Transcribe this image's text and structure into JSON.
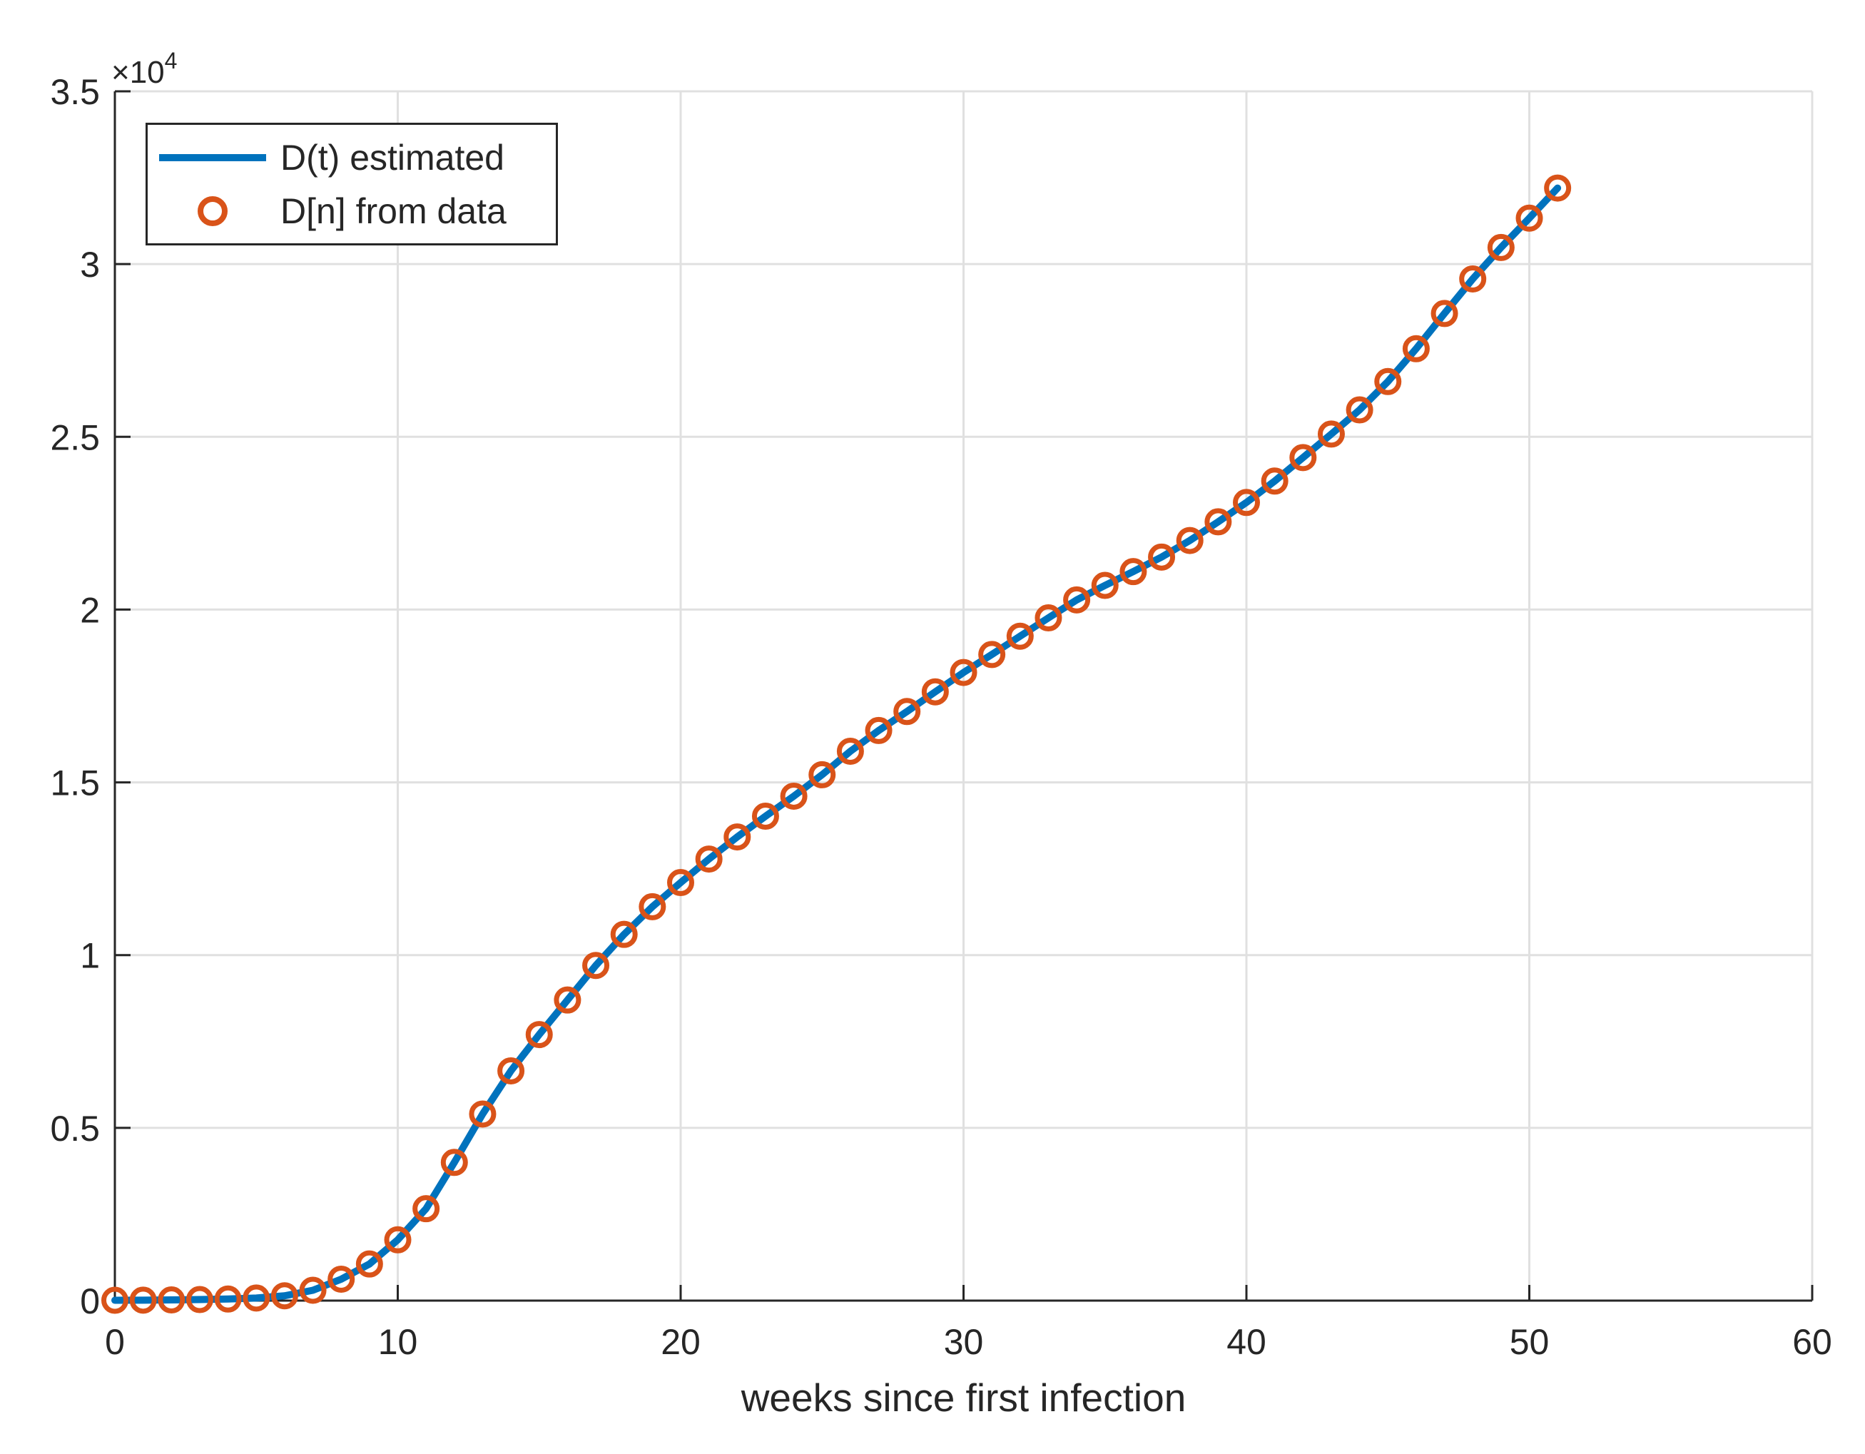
{
  "figure": {
    "xlabel": "weeks since first infection",
    "y_multiplier_base": "×10",
    "y_multiplier_exp": "4",
    "background": "#ffffff",
    "axis_color": "#262626",
    "grid_color": "#e0e0e0"
  },
  "legend": {
    "position": "northwest",
    "items": [
      {
        "label": "D(t) estimated",
        "type": "line",
        "color": "#0072BD"
      },
      {
        "label": "D[n] from data",
        "type": "circle",
        "color": "#D95319"
      }
    ]
  },
  "chart_data": {
    "type": "line",
    "title": "",
    "xlabel": "weeks since first infection",
    "ylabel": "",
    "xlim": [
      0,
      60
    ],
    "ylim": [
      0,
      35000
    ],
    "x_ticks": [
      0,
      10,
      20,
      30,
      40,
      50,
      60
    ],
    "y_ticks": [
      0,
      5000,
      10000,
      15000,
      20000,
      25000,
      30000,
      35000
    ],
    "y_tick_labels": [
      "0",
      "0.5",
      "1",
      "1.5",
      "2",
      "2.5",
      "3",
      "3.5"
    ],
    "y_multiplier_base": "×10",
    "y_multiplier_exp": "4",
    "grid": true,
    "legend_position": "northwest",
    "x": [
      0,
      1,
      2,
      3,
      4,
      5,
      6,
      7,
      8,
      9,
      10,
      11,
      12,
      13,
      14,
      15,
      16,
      17,
      18,
      19,
      20,
      21,
      22,
      23,
      24,
      25,
      26,
      27,
      28,
      29,
      30,
      31,
      32,
      33,
      34,
      35,
      36,
      37,
      38,
      39,
      40,
      41,
      42,
      43,
      44,
      45,
      46,
      47,
      48,
      49,
      50,
      51
    ],
    "series": [
      {
        "name": "D(t) estimated",
        "style": "line",
        "color": "#0072BD",
        "values": [
          10,
          14,
          20,
          30,
          46,
          75,
          140,
          300,
          620,
          1060,
          1760,
          2660,
          4000,
          5400,
          6650,
          7700,
          8700,
          9700,
          10600,
          11400,
          12100,
          12780,
          13420,
          14020,
          14600,
          15220,
          15900,
          16500,
          17050,
          17620,
          18180,
          18700,
          19230,
          19760,
          20280,
          20700,
          21100,
          21520,
          22000,
          22540,
          23100,
          23720,
          24400,
          25080,
          25780,
          26600,
          27550,
          28570,
          29570,
          30480,
          31330,
          32200
        ]
      },
      {
        "name": "D[n] from data",
        "style": "scatter-circle",
        "color": "#D95319",
        "values": [
          10,
          14,
          20,
          30,
          46,
          75,
          140,
          300,
          620,
          1060,
          1760,
          2660,
          4000,
          5400,
          6650,
          7700,
          8700,
          9700,
          10600,
          11400,
          12100,
          12780,
          13420,
          14020,
          14600,
          15220,
          15900,
          16500,
          17050,
          17620,
          18180,
          18700,
          19230,
          19760,
          20280,
          20700,
          21100,
          21520,
          22000,
          22540,
          23100,
          23720,
          24400,
          25080,
          25780,
          26600,
          27550,
          28570,
          29570,
          30480,
          31330,
          32200
        ]
      }
    ]
  }
}
